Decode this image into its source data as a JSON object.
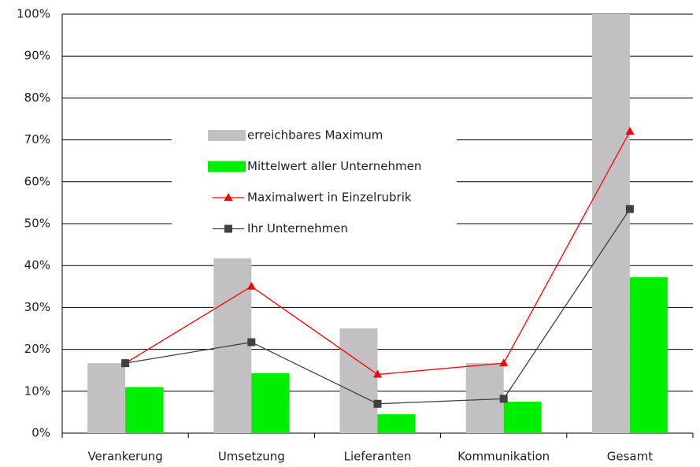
{
  "chart_data": {
    "type": "bar_line",
    "categories": [
      "Verankerung",
      "Umsetzung",
      "Lieferanten",
      "Kommunikation",
      "Gesamt"
    ],
    "series": [
      {
        "name": "erreichbares Maximum",
        "kind": "bar",
        "color": "#c2c0c2",
        "values": [
          16.7,
          41.7,
          25,
          16.7,
          100
        ]
      },
      {
        "name": "Mittelwert aller Unternehmen",
        "kind": "bar",
        "color": "#00ee00",
        "values": [
          11,
          14.3,
          4.5,
          7.5,
          37.2
        ]
      },
      {
        "name": "Maximalwert in Einzelrubrik",
        "kind": "line",
        "marker": "triangle",
        "color": "#ff0000",
        "values": [
          16.7,
          35,
          14,
          16.7,
          72
        ]
      },
      {
        "name": "Ihr Unternehmen",
        "kind": "line",
        "marker": "square",
        "color": "#404040",
        "values": [
          16.7,
          21.7,
          7,
          8.2,
          53.5
        ]
      }
    ],
    "ylim": [
      0,
      100
    ],
    "yticks": [
      {
        "value": 0,
        "label": "0%"
      },
      {
        "value": 10,
        "label": "10%"
      },
      {
        "value": 20,
        "label": "20%"
      },
      {
        "value": 30,
        "label": "30%"
      },
      {
        "value": 40,
        "label": "40%"
      },
      {
        "value": 50,
        "label": "50%"
      },
      {
        "value": 60,
        "label": "60%"
      },
      {
        "value": 70,
        "label": "70%"
      },
      {
        "value": 80,
        "label": "80%"
      },
      {
        "value": 90,
        "label": "90%"
      },
      {
        "value": 100,
        "label": "100%"
      }
    ],
    "grid": true,
    "legend": "center"
  }
}
